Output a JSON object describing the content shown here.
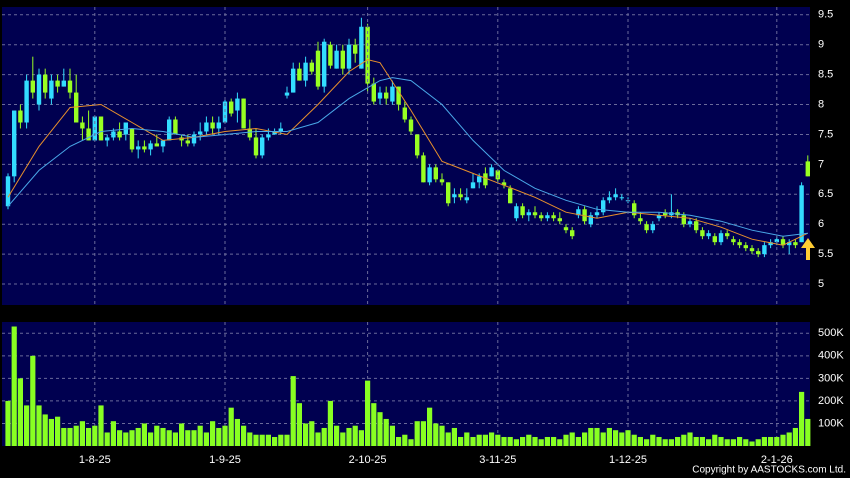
{
  "chart_data": [
    {
      "type": "candlestick",
      "ylim": [
        4.65,
        9.63
      ],
      "yticks": [
        5,
        5.5,
        6,
        6.5,
        7,
        7.5,
        8,
        8.5,
        9,
        9.5
      ],
      "grid": true,
      "up_color": "#33ddff",
      "down_color": "#99ff22",
      "ohlc": [
        [
          6.3,
          6.85,
          6.25,
          6.8
        ],
        [
          6.8,
          7.9,
          6.7,
          7.9
        ],
        [
          7.9,
          8.0,
          7.6,
          7.7
        ],
        [
          7.7,
          8.5,
          7.6,
          8.4
        ],
        [
          8.4,
          8.8,
          8.1,
          8.2
        ],
        [
          8.0,
          8.6,
          7.9,
          8.5
        ],
        [
          8.5,
          8.6,
          8.1,
          8.2
        ],
        [
          8.1,
          8.5,
          8.0,
          8.4
        ],
        [
          8.4,
          8.5,
          8.2,
          8.3
        ],
        [
          8.3,
          8.6,
          8.3,
          8.4
        ],
        [
          8.4,
          8.6,
          8.1,
          8.2
        ],
        [
          8.2,
          8.5,
          7.7,
          7.7
        ],
        [
          7.7,
          7.8,
          7.4,
          7.6
        ],
        [
          7.6,
          7.9,
          7.4,
          7.4
        ],
        [
          7.4,
          7.8,
          7.4,
          7.8
        ],
        [
          7.8,
          7.8,
          7.4,
          7.4
        ],
        [
          7.4,
          7.5,
          7.3,
          7.45
        ],
        [
          7.45,
          7.6,
          7.4,
          7.55
        ],
        [
          7.55,
          7.7,
          7.4,
          7.45
        ],
        [
          7.5,
          7.7,
          7.4,
          7.7
        ],
        [
          7.6,
          7.6,
          7.2,
          7.25
        ],
        [
          7.25,
          7.4,
          7.1,
          7.3
        ],
        [
          7.3,
          7.4,
          7.2,
          7.25
        ],
        [
          7.25,
          7.4,
          7.15,
          7.35
        ],
        [
          7.35,
          7.5,
          7.3,
          7.3
        ],
        [
          7.3,
          7.4,
          7.2,
          7.4
        ],
        [
          7.4,
          7.8,
          7.4,
          7.75
        ],
        [
          7.75,
          7.8,
          7.5,
          7.5
        ],
        [
          7.45,
          7.5,
          7.3,
          7.4
        ],
        [
          7.4,
          7.5,
          7.3,
          7.35
        ],
        [
          7.35,
          7.55,
          7.3,
          7.5
        ],
        [
          7.5,
          7.7,
          7.4,
          7.55
        ],
        [
          7.55,
          7.8,
          7.5,
          7.7
        ],
        [
          7.7,
          7.8,
          7.5,
          7.6
        ],
        [
          7.6,
          7.8,
          7.5,
          7.7
        ],
        [
          7.7,
          8.1,
          7.7,
          8.05
        ],
        [
          8.05,
          8.1,
          7.8,
          7.85
        ],
        [
          7.9,
          8.2,
          7.7,
          8.1
        ],
        [
          8.1,
          8.1,
          7.6,
          7.6
        ],
        [
          7.6,
          7.75,
          7.4,
          7.45
        ],
        [
          7.45,
          7.6,
          7.1,
          7.15
        ],
        [
          7.15,
          7.5,
          7.1,
          7.45
        ],
        [
          7.45,
          7.6,
          7.4,
          7.5
        ],
        [
          7.5,
          7.6,
          7.5,
          7.55
        ],
        [
          7.55,
          7.7,
          7.5,
          7.6
        ],
        [
          8.15,
          8.3,
          8.1,
          8.2
        ],
        [
          8.2,
          8.7,
          8.2,
          8.6
        ],
        [
          8.6,
          8.7,
          8.4,
          8.4
        ],
        [
          8.4,
          8.8,
          8.3,
          8.7
        ],
        [
          8.7,
          8.75,
          8.5,
          8.55
        ],
        [
          8.9,
          9.05,
          8.25,
          8.3
        ],
        [
          8.3,
          9.1,
          8.2,
          9.05
        ],
        [
          9.0,
          9.05,
          8.6,
          8.65
        ],
        [
          8.6,
          9.0,
          8.6,
          8.9
        ],
        [
          8.9,
          9.0,
          8.5,
          8.6
        ],
        [
          8.6,
          9.1,
          8.5,
          9.0
        ],
        [
          9.0,
          9.1,
          8.7,
          8.85
        ],
        [
          8.6,
          9.45,
          8.6,
          9.3
        ],
        [
          9.3,
          9.35,
          8.2,
          8.35
        ],
        [
          8.35,
          8.45,
          8.0,
          8.05
        ],
        [
          8.1,
          8.3,
          8.0,
          8.2
        ],
        [
          8.2,
          8.3,
          8.0,
          8.1
        ],
        [
          8.05,
          8.4,
          8.0,
          8.3
        ],
        [
          8.3,
          8.3,
          7.9,
          8.0
        ],
        [
          7.95,
          8.05,
          7.7,
          7.75
        ],
        [
          7.75,
          7.8,
          7.5,
          7.55
        ],
        [
          7.5,
          7.5,
          7.1,
          7.15
        ],
        [
          7.15,
          7.2,
          6.7,
          6.7
        ],
        [
          6.7,
          7.0,
          6.65,
          6.95
        ],
        [
          6.95,
          7.0,
          6.7,
          6.75
        ],
        [
          6.75,
          6.85,
          6.65,
          6.7
        ],
        [
          6.7,
          6.7,
          6.3,
          6.35
        ],
        [
          6.45,
          6.6,
          6.35,
          6.5
        ],
        [
          6.5,
          6.6,
          6.4,
          6.45
        ],
        [
          6.4,
          6.6,
          6.35,
          6.45
        ],
        [
          6.6,
          6.85,
          6.6,
          6.7
        ],
        [
          6.7,
          6.85,
          6.6,
          6.8
        ],
        [
          6.85,
          6.95,
          6.6,
          6.65
        ],
        [
          6.8,
          7.0,
          6.8,
          6.95
        ],
        [
          6.9,
          6.9,
          6.7,
          6.75
        ],
        [
          6.7,
          6.75,
          6.6,
          6.65
        ],
        [
          6.6,
          6.65,
          6.35,
          6.35
        ],
        [
          6.1,
          6.35,
          6.05,
          6.3
        ],
        [
          6.3,
          6.35,
          6.1,
          6.15
        ],
        [
          6.15,
          6.25,
          6.05,
          6.2
        ],
        [
          6.2,
          6.3,
          6.1,
          6.15
        ],
        [
          6.15,
          6.2,
          6.05,
          6.1
        ],
        [
          6.1,
          6.2,
          6.05,
          6.15
        ],
        [
          6.15,
          6.2,
          6.05,
          6.1
        ],
        [
          6.1,
          6.2,
          6.0,
          6.05
        ],
        [
          5.95,
          6.0,
          5.85,
          5.9
        ],
        [
          5.9,
          5.95,
          5.75,
          5.8
        ],
        [
          6.15,
          6.3,
          6.1,
          6.25
        ],
        [
          6.25,
          6.3,
          6.0,
          6.05
        ],
        [
          6.0,
          6.2,
          5.95,
          6.15
        ],
        [
          6.15,
          6.3,
          6.1,
          6.2
        ],
        [
          6.2,
          6.45,
          6.15,
          6.4
        ],
        [
          6.4,
          6.55,
          6.35,
          6.45
        ],
        [
          6.45,
          6.6,
          6.4,
          6.5
        ],
        [
          6.45,
          6.5,
          6.4,
          6.45
        ],
        [
          6.4,
          6.45,
          6.35,
          6.4
        ],
        [
          6.35,
          6.4,
          6.1,
          6.15
        ],
        [
          6.1,
          6.2,
          6.0,
          6.05
        ],
        [
          6.0,
          6.05,
          5.85,
          5.9
        ],
        [
          5.9,
          6.05,
          5.85,
          6.0
        ],
        [
          6.1,
          6.2,
          6.05,
          6.15
        ],
        [
          6.2,
          6.25,
          6.1,
          6.15
        ],
        [
          6.15,
          6.5,
          6.1,
          6.2
        ],
        [
          6.2,
          6.25,
          6.1,
          6.15
        ],
        [
          6.15,
          6.2,
          5.95,
          6.0
        ],
        [
          6.0,
          6.1,
          5.95,
          6.05
        ],
        [
          6.05,
          6.1,
          5.85,
          5.9
        ],
        [
          5.9,
          5.95,
          5.75,
          5.8
        ],
        [
          5.8,
          5.9,
          5.75,
          5.85
        ],
        [
          5.8,
          5.85,
          5.65,
          5.7
        ],
        [
          5.7,
          5.9,
          5.65,
          5.85
        ],
        [
          5.85,
          5.9,
          5.75,
          5.8
        ],
        [
          5.75,
          5.8,
          5.65,
          5.7
        ],
        [
          5.7,
          5.75,
          5.6,
          5.65
        ],
        [
          5.65,
          5.7,
          5.55,
          5.6
        ],
        [
          5.6,
          5.65,
          5.5,
          5.55
        ],
        [
          5.55,
          5.6,
          5.45,
          5.5
        ],
        [
          5.5,
          5.7,
          5.45,
          5.65
        ],
        [
          5.65,
          5.75,
          5.6,
          5.7
        ],
        [
          5.7,
          5.8,
          5.65,
          5.75
        ],
        [
          5.75,
          5.8,
          5.6,
          5.65
        ],
        [
          5.65,
          5.75,
          5.5,
          5.7
        ],
        [
          5.7,
          5.75,
          5.6,
          5.65
        ],
        [
          5.7,
          6.7,
          5.7,
          6.65
        ],
        [
          7.05,
          7.15,
          6.8,
          6.8
        ]
      ],
      "lines": [
        {
          "color": "#e8902c",
          "x": [
            0,
            5,
            10,
            15,
            20,
            25,
            30,
            35,
            40,
            45,
            50,
            55,
            58,
            60,
            65,
            70,
            75,
            80,
            85,
            90,
            95,
            100,
            105,
            110,
            115,
            120,
            125,
            129
          ],
          "values": [
            6.45,
            7.3,
            7.95,
            8.0,
            7.7,
            7.4,
            7.45,
            7.55,
            7.6,
            7.5,
            8.0,
            8.55,
            8.75,
            8.7,
            7.9,
            7.05,
            6.85,
            6.65,
            6.45,
            6.2,
            6.1,
            6.2,
            6.15,
            6.1,
            5.95,
            5.75,
            5.65,
            5.85
          ]
        },
        {
          "color": "#4aa8e8",
          "x": [
            0,
            5,
            10,
            15,
            20,
            25,
            30,
            35,
            40,
            45,
            50,
            55,
            60,
            62,
            65,
            70,
            75,
            80,
            85,
            90,
            95,
            100,
            105,
            110,
            115,
            120,
            125,
            129
          ],
          "values": [
            6.3,
            6.9,
            7.3,
            7.55,
            7.6,
            7.55,
            7.45,
            7.5,
            7.55,
            7.55,
            7.7,
            8.1,
            8.4,
            8.45,
            8.4,
            8.0,
            7.4,
            6.9,
            6.6,
            6.4,
            6.25,
            6.2,
            6.2,
            6.15,
            6.05,
            5.9,
            5.8,
            5.85
          ]
        }
      ]
    },
    {
      "type": "bar",
      "color": "#88ff22",
      "ylim": [
        0,
        550000
      ],
      "yticks": [
        {
          "value": 100000,
          "label": "100K"
        },
        {
          "value": 200000,
          "label": "200K"
        },
        {
          "value": 300000,
          "label": "300K"
        },
        {
          "value": 400000,
          "label": "400K"
        },
        {
          "value": 500000,
          "label": "500K"
        }
      ],
      "grid": true,
      "categories": [
        null,
        null,
        null,
        null,
        null,
        null,
        null,
        null,
        null,
        null,
        null,
        null,
        null,
        null,
        "1-8-25",
        null,
        null,
        null,
        null,
        null,
        null,
        null,
        null,
        null,
        null,
        null,
        null,
        null,
        null,
        null,
        null,
        null,
        null,
        null,
        null,
        "1-9-25",
        null,
        null,
        null,
        null,
        null,
        null,
        null,
        null,
        null,
        null,
        null,
        null,
        null,
        null,
        null,
        null,
        null,
        null,
        null,
        null,
        null,
        null,
        "2-10-25",
        null,
        null,
        null,
        null,
        null,
        null,
        null,
        null,
        null,
        null,
        null,
        null,
        null,
        null,
        null,
        null,
        null,
        null,
        null,
        null,
        "3-11-25",
        null,
        null,
        null,
        null,
        null,
        null,
        null,
        null,
        null,
        null,
        null,
        null,
        null,
        null,
        null,
        null,
        null,
        null,
        null,
        null,
        "1-12-25",
        null,
        null,
        null,
        null,
        null,
        null,
        null,
        null,
        null,
        null,
        null,
        null,
        null,
        null,
        null,
        null,
        null,
        null,
        null,
        null,
        null,
        null,
        null,
        "2-1-26",
        null,
        null,
        null,
        null,
        null
      ],
      "values": [
        200000,
        530000,
        300000,
        180000,
        400000,
        180000,
        140000,
        120000,
        130000,
        80000,
        80000,
        90000,
        110000,
        80000,
        90000,
        180000,
        60000,
        110000,
        70000,
        60000,
        70000,
        80000,
        100000,
        60000,
        90000,
        80000,
        70000,
        60000,
        100000,
        70000,
        70000,
        90000,
        60000,
        110000,
        80000,
        90000,
        170000,
        120000,
        90000,
        60000,
        50000,
        50000,
        50000,
        40000,
        50000,
        50000,
        310000,
        190000,
        100000,
        110000,
        60000,
        80000,
        200000,
        90000,
        60000,
        80000,
        90000,
        70000,
        290000,
        190000,
        150000,
        120000,
        90000,
        40000,
        50000,
        30000,
        110000,
        110000,
        170000,
        100000,
        90000,
        60000,
        80000,
        40000,
        60000,
        40000,
        50000,
        50000,
        60000,
        50000,
        40000,
        40000,
        30000,
        40000,
        50000,
        40000,
        30000,
        40000,
        40000,
        30000,
        50000,
        60000,
        40000,
        60000,
        80000,
        80000,
        60000,
        80000,
        70000,
        60000,
        70000,
        50000,
        40000,
        30000,
        50000,
        40000,
        30000,
        30000,
        40000,
        50000,
        60000,
        40000,
        40000,
        30000,
        50000,
        40000,
        30000,
        30000,
        40000,
        30000,
        20000,
        30000,
        40000,
        40000,
        40000,
        50000,
        60000,
        80000,
        240000,
        120000
      ]
    }
  ],
  "copyright": "Copyright by AASTOCKS.com Ltd."
}
